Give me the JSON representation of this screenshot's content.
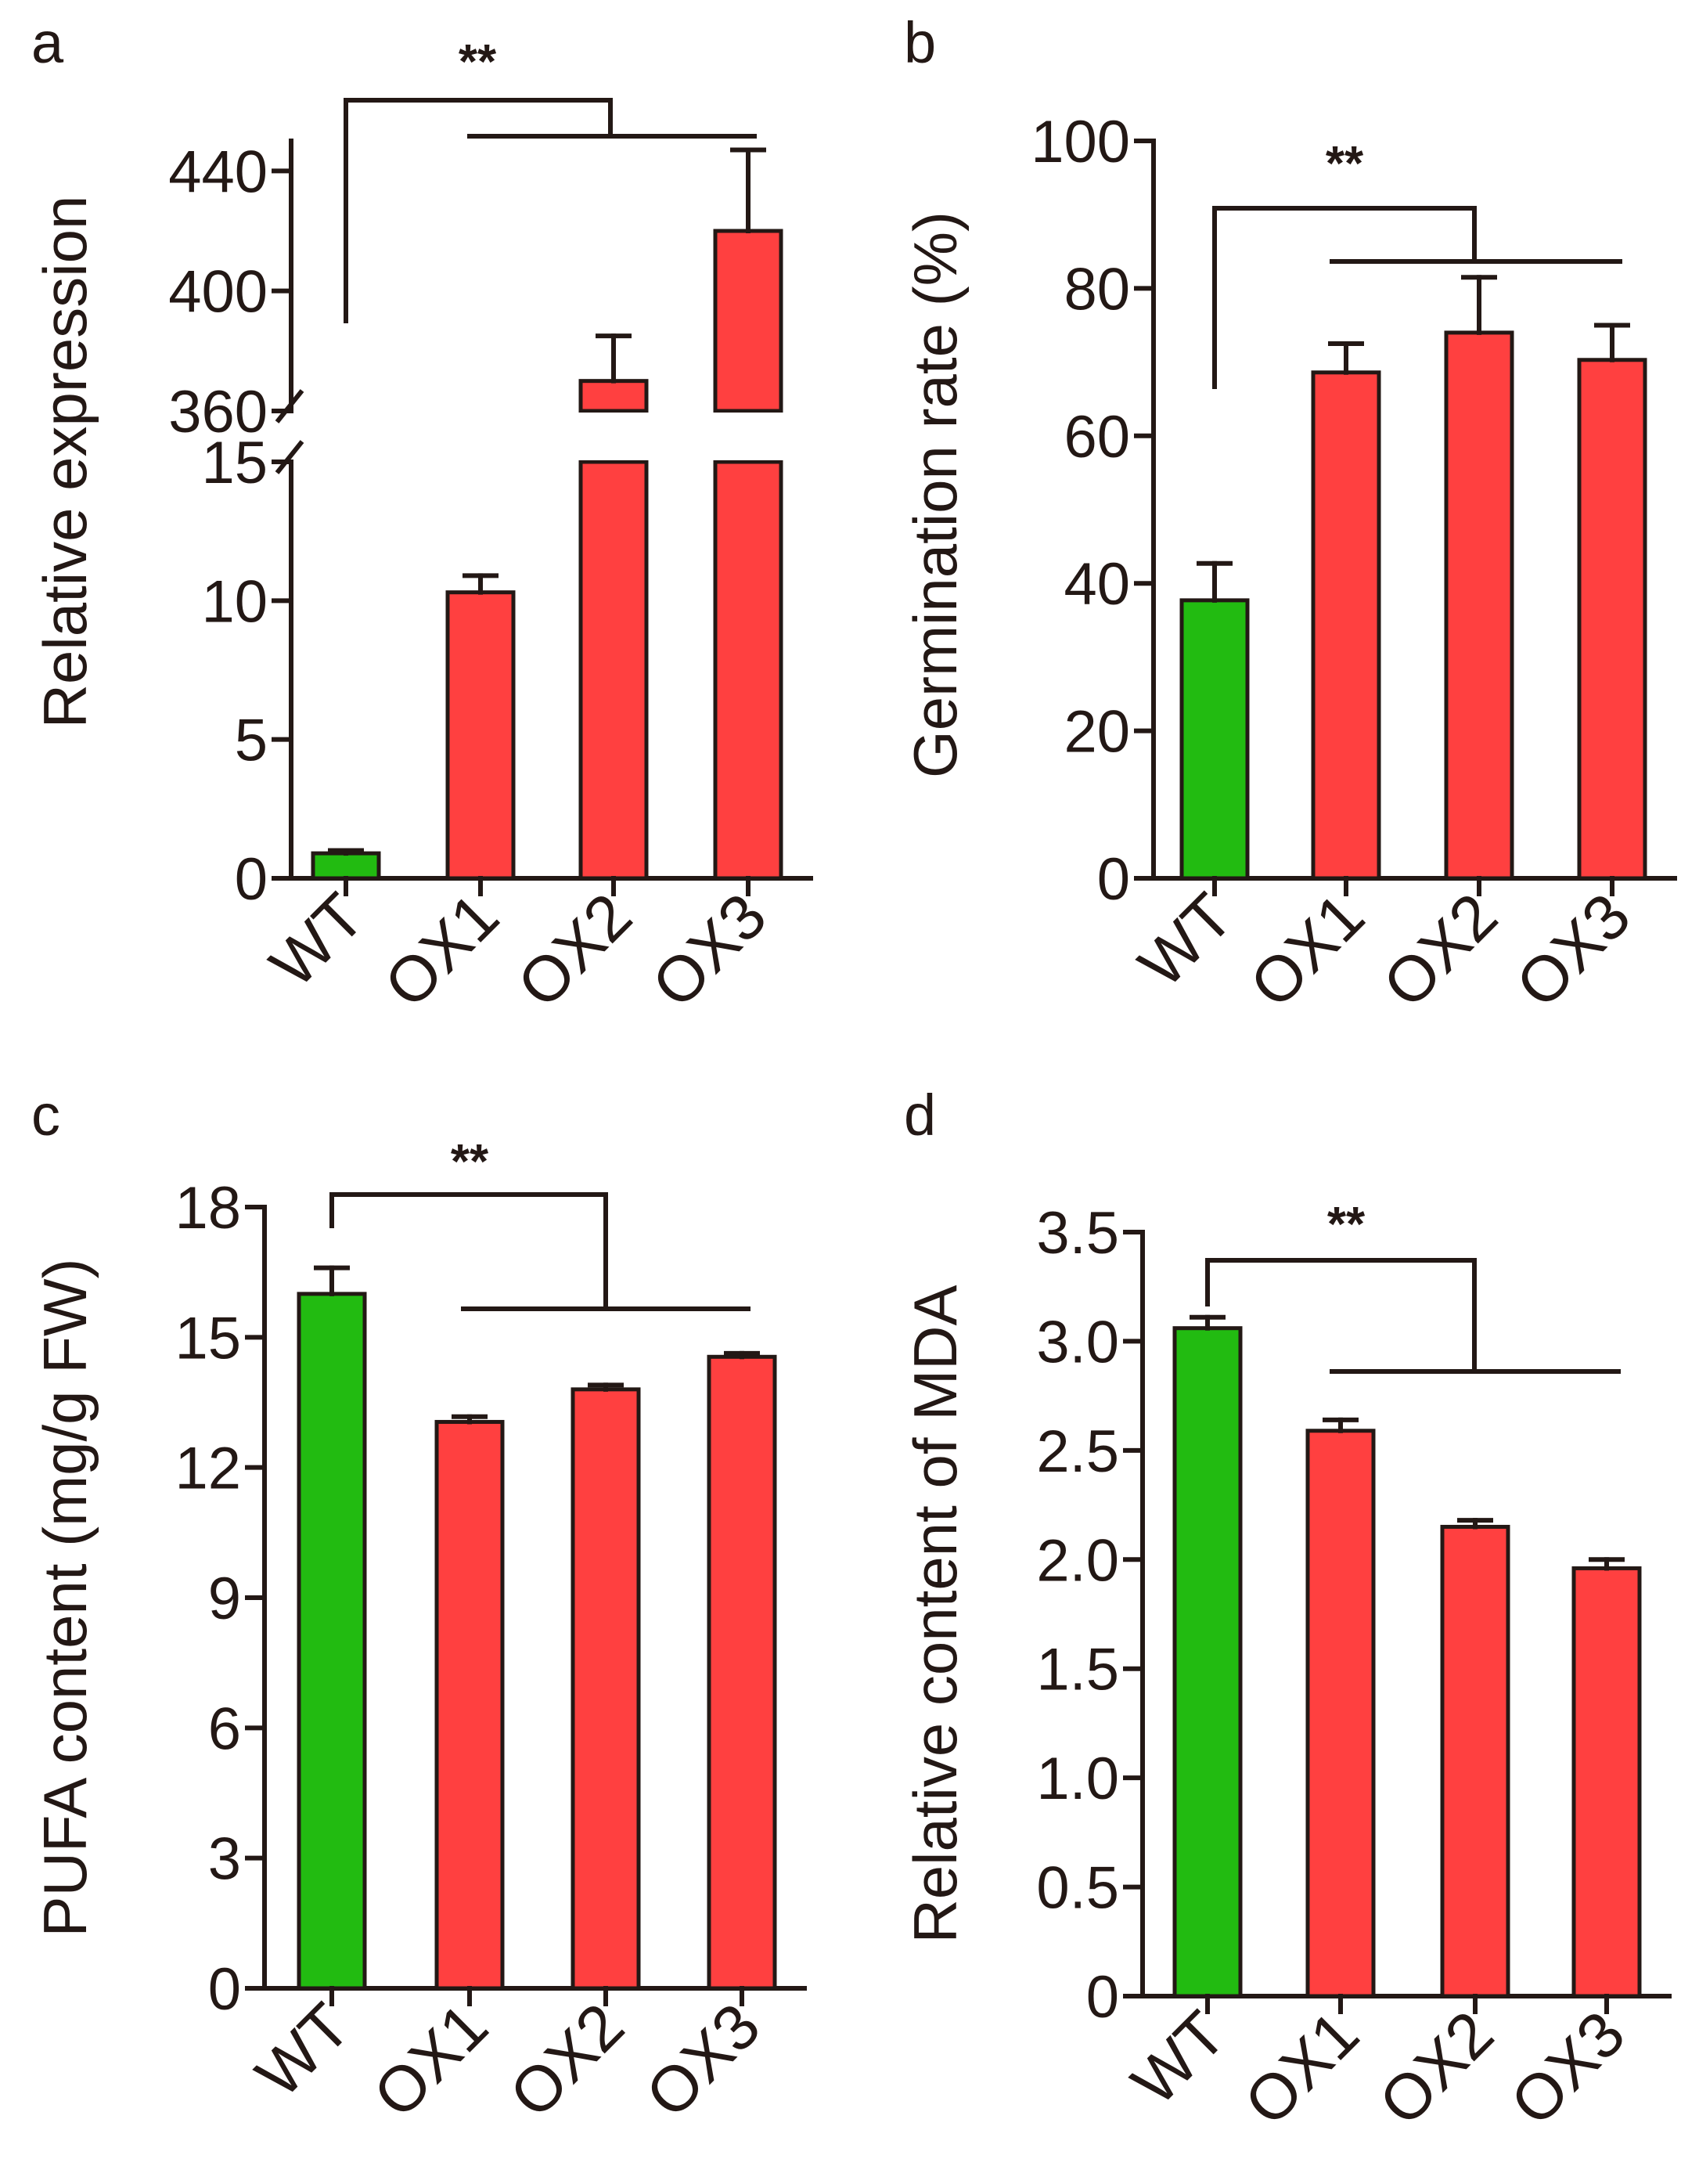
{
  "colors": {
    "WT": "#22bb11",
    "OX": "#ff4040",
    "ink": "#231815"
  },
  "chart_data": [
    {
      "panel": "a",
      "type": "bar",
      "ylabel": "Relative expression",
      "categories": [
        "WT",
        "OX1",
        "OX2",
        "OX3"
      ],
      "values": [
        0.9,
        10.3,
        370,
        420
      ],
      "errors": [
        0.1,
        0.6,
        15,
        27
      ],
      "colors": [
        "#22bb11",
        "#ff4040",
        "#ff4040",
        "#ff4040"
      ],
      "axis_break": {
        "lower": [
          0,
          15
        ],
        "upper": [
          360,
          450
        ]
      },
      "lower_ticks": [
        0,
        5,
        10,
        15
      ],
      "upper_ticks": [
        360,
        400,
        440
      ],
      "significance": {
        "label": "**",
        "from": "WT",
        "to": [
          "OX1",
          "OX2",
          "OX3"
        ]
      }
    },
    {
      "panel": "b",
      "type": "bar",
      "ylabel": "Germination rate (%)",
      "categories": [
        "WT",
        "OX1",
        "OX2",
        "OX3"
      ],
      "values": [
        37.7,
        68.6,
        74.0,
        70.3
      ],
      "errors": [
        5.0,
        3.9,
        7.5,
        4.7
      ],
      "colors": [
        "#22bb11",
        "#ff4040",
        "#ff4040",
        "#ff4040"
      ],
      "ylim": [
        0,
        100
      ],
      "yticks": [
        0,
        20,
        40,
        60,
        80,
        100
      ],
      "significance": {
        "label": "**",
        "from": "WT",
        "to": [
          "OX1",
          "OX2",
          "OX3"
        ]
      }
    },
    {
      "panel": "c",
      "type": "bar",
      "ylabel": "PUFA content (mg/g FW)",
      "categories": [
        "WT",
        "OX1",
        "OX2",
        "OX3"
      ],
      "values": [
        16.0,
        13.05,
        13.8,
        14.55
      ],
      "errors": [
        0.6,
        0.12,
        0.1,
        0.08
      ],
      "colors": [
        "#22bb11",
        "#ff4040",
        "#ff4040",
        "#ff4040"
      ],
      "ylim": [
        0,
        18
      ],
      "yticks": [
        0,
        3,
        6,
        9,
        12,
        15,
        18
      ],
      "significance": {
        "label": "**",
        "from": "WT",
        "to": [
          "OX1",
          "OX2",
          "OX3"
        ]
      }
    },
    {
      "panel": "d",
      "type": "bar",
      "ylabel": "Relative content of MDA",
      "categories": [
        "WT",
        "OX1",
        "OX2",
        "OX3"
      ],
      "values": [
        3.06,
        2.59,
        2.15,
        1.96
      ],
      "errors": [
        0.05,
        0.05,
        0.03,
        0.04
      ],
      "colors": [
        "#22bb11",
        "#ff4040",
        "#ff4040",
        "#ff4040"
      ],
      "ylim": [
        0,
        3.5
      ],
      "yticks": [
        "0",
        "0.5",
        "1.0",
        "1.5",
        "2.0",
        "2.5",
        "3.0",
        "3.5"
      ],
      "significance": {
        "label": "**",
        "from": "WT",
        "to": [
          "OX1",
          "OX2",
          "OX3"
        ]
      }
    }
  ]
}
